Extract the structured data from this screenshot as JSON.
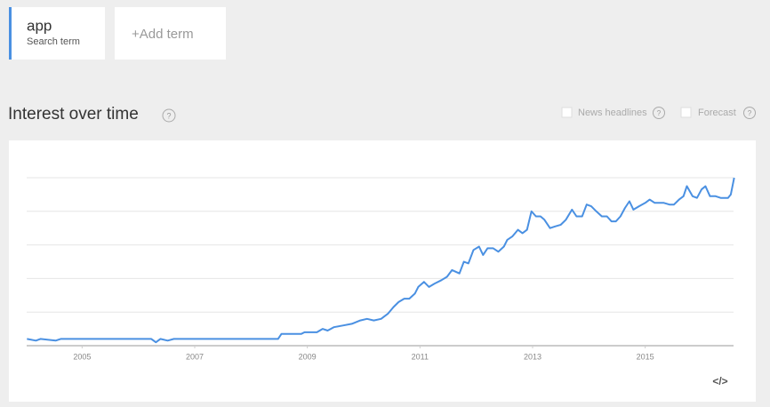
{
  "search_terms": [
    {
      "term": "app",
      "caption": "Search term"
    }
  ],
  "add_term": {
    "plus": "+",
    "label": "Add term"
  },
  "section": {
    "title": "Interest over time",
    "help": "?"
  },
  "options": [
    {
      "label": "News headlines",
      "help": "?"
    },
    {
      "label": "Forecast",
      "help": "?"
    }
  ],
  "embed": "</>",
  "chart_data": {
    "type": "line",
    "x": [
      2004.02,
      2004.18,
      2004.26,
      2004.53,
      2004.62,
      2006.23,
      2006.31,
      2006.39,
      2006.52,
      2006.63,
      2008.48,
      2008.54,
      2008.89,
      2008.95,
      2009.17,
      2009.27,
      2009.36,
      2009.47,
      2009.63,
      2009.79,
      2009.94,
      2010.06,
      2010.18,
      2010.31,
      2010.43,
      2010.53,
      2010.62,
      2010.72,
      2010.81,
      2010.91,
      2010.97,
      2011.07,
      2011.16,
      2011.26,
      2011.38,
      2011.48,
      2011.57,
      2011.7,
      2011.78,
      2011.86,
      2011.95,
      2012.05,
      2012.12,
      2012.2,
      2012.3,
      2012.39,
      2012.49,
      2012.55,
      2012.64,
      2012.74,
      2012.82,
      2012.9,
      2012.98,
      2013.06,
      2013.14,
      2013.21,
      2013.31,
      2013.4,
      2013.5,
      2013.59,
      2013.7,
      2013.78,
      2013.88,
      2013.96,
      2014.04,
      2014.13,
      2014.23,
      2014.32,
      2014.4,
      2014.48,
      2014.56,
      2014.64,
      2014.72,
      2014.79,
      2014.89,
      2015.0,
      2015.08,
      2015.17,
      2015.33,
      2015.43,
      2015.51,
      2015.6,
      2015.68,
      2015.74,
      2015.84,
      2015.92,
      2016.0,
      2016.07,
      2016.15,
      2016.25,
      2016.34,
      2016.47,
      2016.52,
      2016.58
    ],
    "series": [
      {
        "name": "app",
        "color": "#4a90e2",
        "values": [
          4,
          3,
          4,
          3,
          4,
          4,
          2,
          4,
          3,
          4,
          4,
          7,
          7,
          8,
          8,
          10,
          9,
          11,
          12,
          13,
          15,
          16,
          15,
          16,
          19,
          23,
          26,
          28,
          28,
          31,
          35,
          38,
          35,
          37,
          39,
          41,
          45,
          43,
          50,
          49,
          57,
          59,
          54,
          58,
          58,
          56,
          59,
          63,
          65,
          69,
          67,
          69,
          80,
          77,
          77,
          75,
          70,
          71,
          72,
          75,
          81,
          77,
          77,
          84,
          83,
          80,
          77,
          77,
          74,
          74,
          77,
          82,
          86,
          81,
          83,
          85,
          87,
          85,
          85,
          84,
          84,
          87,
          89,
          95,
          89,
          88,
          93,
          95,
          89,
          89,
          88,
          88,
          90,
          100
        ]
      }
    ],
    "xlim": [
      2004,
      2016.6
    ],
    "xticks": [
      2005,
      2007,
      2009,
      2011,
      2013,
      2015
    ],
    "ylim": [
      0,
      100
    ],
    "yticks": [
      0,
      20,
      40,
      60,
      80,
      100
    ],
    "grid": true
  }
}
